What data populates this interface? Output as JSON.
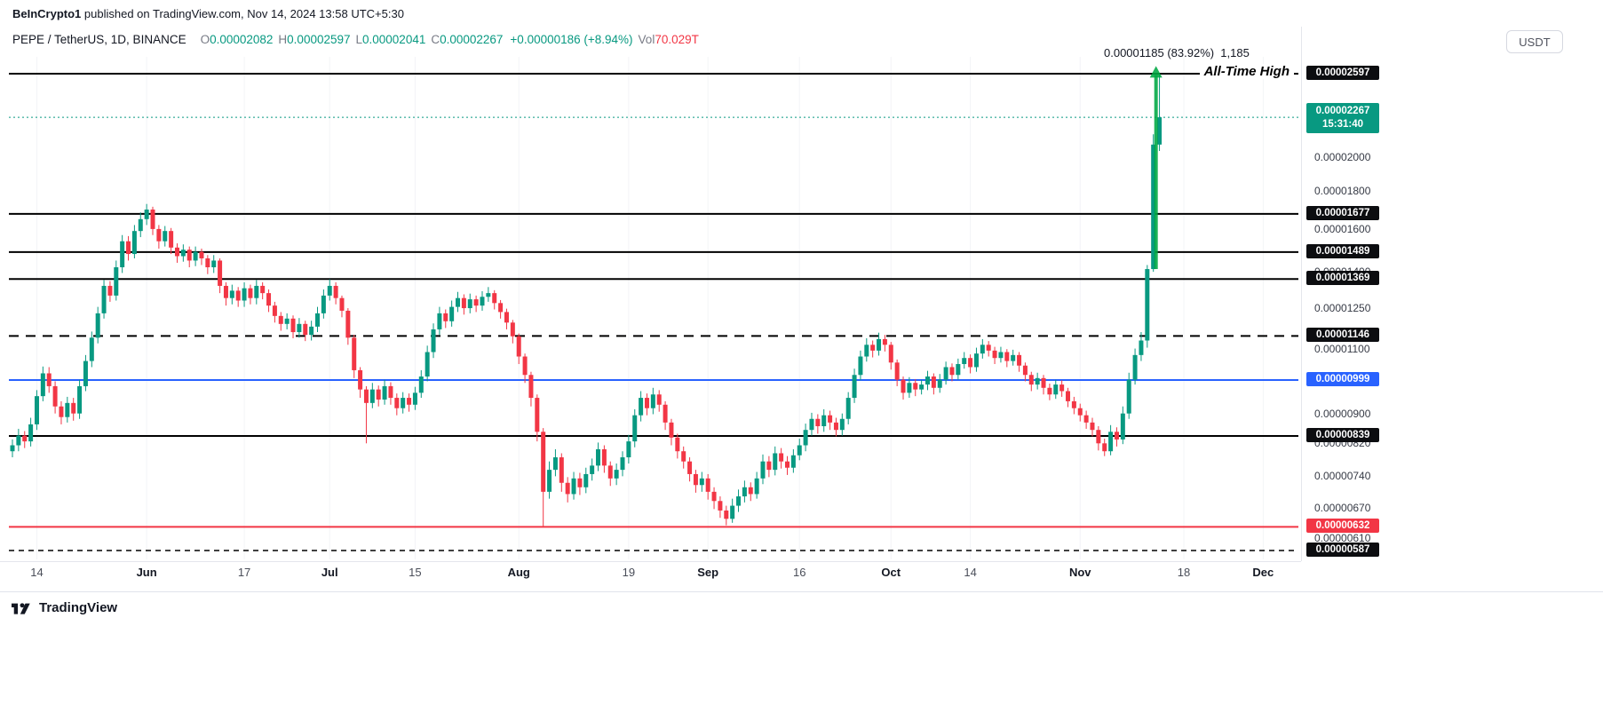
{
  "top_bar": {
    "publisher": "BeInCrypto1",
    "rest": " published on TradingView.com, Nov 14, 2024 13:58 UTC+5:30"
  },
  "header": {
    "symbol": "PEPE / TetherUS, 1D, BINANCE",
    "o_label": "O",
    "o": "0.00002082",
    "h_label": "H",
    "h": "0.00002597",
    "l_label": "L",
    "l": "0.00002041",
    "c_label": "C",
    "c": "0.00002267",
    "change": "+0.00000186 (+8.94%)",
    "vol_label": "Vol",
    "vol": "70.029T",
    "currency": "USDT"
  },
  "annotations": {
    "measure_label": "0.00001185 (83.92%)  1,185",
    "ath_label": "All-Time High"
  },
  "footer": {
    "brand": "TradingView"
  },
  "chart_data": {
    "type": "candlestick",
    "title": "PEPE / TetherUS, 1D, BINANCE",
    "symbol": "PEPE/USDT",
    "timeframe": "1D",
    "exchange": "BINANCE",
    "y_scale": "log",
    "y_range": [
      "0.00000587",
      "0.00002597"
    ],
    "x_range": [
      "2024-05-10",
      "2024-12-02"
    ],
    "price_unit_note": "candle OHLC values are in units of 0.00000001 USDT",
    "start_date": "2024-05-10",
    "colors": {
      "up": "#089981",
      "down": "#f23645"
    },
    "current": {
      "open": "0.00002082",
      "high": "0.00002597",
      "low": "0.00002041",
      "close": "0.00002267",
      "change": "+0.00000186",
      "change_pct": "+8.94%",
      "volume": "70.029T"
    },
    "last_price": {
      "price": 2267,
      "label": "0.00002267",
      "countdown": "15:31:40",
      "color": "#089981"
    },
    "levels": [
      {
        "name": "ath",
        "price": 2597,
        "label": "0.00002597",
        "color": "#000000",
        "badge": "#0c0d10",
        "width": 2
      },
      {
        "name": "r3",
        "price": 1677,
        "label": "0.00001677",
        "color": "#000000",
        "badge": "#0c0d10",
        "width": 2
      },
      {
        "name": "r2",
        "price": 1489,
        "label": "0.00001489",
        "color": "#000000",
        "badge": "#0c0d10",
        "width": 2
      },
      {
        "name": "r1",
        "price": 1369,
        "label": "0.00001369",
        "color": "#000000",
        "badge": "#0c0d10",
        "width": 2
      },
      {
        "name": "mid",
        "price": 1146,
        "label": "0.00001146",
        "color": "#000000",
        "badge": "#0c0d10",
        "width": 2,
        "dash": "11,8"
      },
      {
        "name": "blue",
        "price": 999,
        "label": "0.00000999",
        "color": "#2962ff",
        "badge": "#2962ff",
        "width": 2
      },
      {
        "name": "s1",
        "price": 839,
        "label": "0.00000839",
        "color": "#000000",
        "badge": "#0c0d10",
        "width": 2
      },
      {
        "name": "red",
        "price": 632,
        "label": "0.00000632",
        "color": "#f23645",
        "badge": "#f23645",
        "width": 2
      },
      {
        "name": "s2",
        "price": 587,
        "label": "0.00000587",
        "color": "#000000",
        "badge": "#0c0d10",
        "width": 1.5,
        "dash": "6,5"
      }
    ],
    "y_ticks": [
      {
        "price": 2000,
        "label": "0.00002000"
      },
      {
        "price": 1800,
        "label": "0.00001800"
      },
      {
        "price": 1600,
        "label": "0.00001600"
      },
      {
        "price": 1400,
        "label": "0.00001400"
      },
      {
        "price": 1250,
        "label": "0.00001250"
      },
      {
        "price": 1100,
        "label": "0.00001100"
      },
      {
        "price": 900,
        "label": "0.00000900"
      },
      {
        "price": 820,
        "label": "0.00000820"
      },
      {
        "price": 740,
        "label": "0.00000740"
      },
      {
        "price": 670,
        "label": "0.00000670"
      },
      {
        "price": 610,
        "label": "0.00000610"
      }
    ],
    "x_ticks": [
      {
        "i": 4,
        "label": "14"
      },
      {
        "i": 22,
        "label": "Jun",
        "major": true
      },
      {
        "i": 38,
        "label": "17"
      },
      {
        "i": 52,
        "label": "Jul",
        "major": true
      },
      {
        "i": 66,
        "label": "15"
      },
      {
        "i": 83,
        "label": "Aug",
        "major": true
      },
      {
        "i": 101,
        "label": "19"
      },
      {
        "i": 114,
        "label": "Sep",
        "major": true
      },
      {
        "i": 129,
        "label": "16"
      },
      {
        "i": 144,
        "label": "Oct",
        "major": true
      },
      {
        "i": 157,
        "label": "14"
      },
      {
        "i": 175,
        "label": "Nov",
        "major": true
      },
      {
        "i": 192,
        "label": "18"
      },
      {
        "i": 205,
        "label": "Dec",
        "major": true
      }
    ],
    "arrow": {
      "at_index": 187,
      "from_price": 1412,
      "to_price": 2660,
      "color": "#00a843"
    },
    "candles": [
      [
        800,
        830,
        785,
        815
      ],
      [
        815,
        858,
        800,
        840
      ],
      [
        840,
        852,
        808,
        825
      ],
      [
        825,
        888,
        812,
        870
      ],
      [
        870,
        968,
        855,
        950
      ],
      [
        950,
        1042,
        935,
        1020
      ],
      [
        1020,
        1040,
        960,
        980
      ],
      [
        980,
        995,
        900,
        920
      ],
      [
        920,
        935,
        870,
        890
      ],
      [
        890,
        948,
        875,
        930
      ],
      [
        930,
        945,
        880,
        900
      ],
      [
        900,
        1000,
        885,
        980
      ],
      [
        980,
        1080,
        965,
        1060
      ],
      [
        1060,
        1162,
        1040,
        1140
      ],
      [
        1140,
        1255,
        1120,
        1230
      ],
      [
        1230,
        1365,
        1210,
        1340
      ],
      [
        1340,
        1360,
        1275,
        1300
      ],
      [
        1300,
        1450,
        1280,
        1420
      ],
      [
        1420,
        1570,
        1395,
        1540
      ],
      [
        1540,
        1565,
        1450,
        1480
      ],
      [
        1480,
        1620,
        1460,
        1590
      ],
      [
        1590,
        1685,
        1560,
        1650
      ],
      [
        1650,
        1730,
        1620,
        1700
      ],
      [
        1700,
        1715,
        1570,
        1600
      ],
      [
        1600,
        1620,
        1505,
        1540
      ],
      [
        1540,
        1615,
        1515,
        1590
      ],
      [
        1590,
        1605,
        1480,
        1510
      ],
      [
        1510,
        1530,
        1440,
        1470
      ],
      [
        1470,
        1525,
        1445,
        1500
      ],
      [
        1500,
        1515,
        1420,
        1450
      ],
      [
        1450,
        1515,
        1425,
        1490
      ],
      [
        1490,
        1505,
        1430,
        1460
      ],
      [
        1460,
        1475,
        1390,
        1420
      ],
      [
        1420,
        1475,
        1395,
        1450
      ],
      [
        1450,
        1460,
        1310,
        1340
      ],
      [
        1340,
        1355,
        1260,
        1290
      ],
      [
        1290,
        1345,
        1265,
        1320
      ],
      [
        1320,
        1335,
        1255,
        1280
      ],
      [
        1280,
        1355,
        1255,
        1330
      ],
      [
        1330,
        1345,
        1265,
        1290
      ],
      [
        1290,
        1365,
        1265,
        1340
      ],
      [
        1340,
        1355,
        1285,
        1310
      ],
      [
        1310,
        1325,
        1235,
        1260
      ],
      [
        1260,
        1275,
        1195,
        1220
      ],
      [
        1220,
        1235,
        1165,
        1190
      ],
      [
        1190,
        1230,
        1170,
        1210
      ],
      [
        1210,
        1222,
        1138,
        1160
      ],
      [
        1160,
        1212,
        1140,
        1190
      ],
      [
        1190,
        1202,
        1128,
        1150
      ],
      [
        1150,
        1202,
        1130,
        1180
      ],
      [
        1180,
        1255,
        1160,
        1230
      ],
      [
        1230,
        1325,
        1210,
        1300
      ],
      [
        1300,
        1368,
        1280,
        1340
      ],
      [
        1340,
        1355,
        1265,
        1290
      ],
      [
        1290,
        1300,
        1215,
        1240
      ],
      [
        1240,
        1250,
        1115,
        1140
      ],
      [
        1140,
        1150,
        1005,
        1030
      ],
      [
        1030,
        1040,
        945,
        970
      ],
      [
        970,
        980,
        820,
        930
      ],
      [
        930,
        990,
        915,
        970
      ],
      [
        970,
        982,
        920,
        940
      ],
      [
        940,
        1000,
        925,
        980
      ],
      [
        980,
        992,
        925,
        945
      ],
      [
        945,
        958,
        895,
        915
      ],
      [
        915,
        962,
        900,
        945
      ],
      [
        945,
        958,
        905,
        925
      ],
      [
        925,
        978,
        910,
        960
      ],
      [
        960,
        1030,
        945,
        1010
      ],
      [
        1010,
        1112,
        995,
        1090
      ],
      [
        1090,
        1192,
        1070,
        1170
      ],
      [
        1170,
        1255,
        1150,
        1230
      ],
      [
        1230,
        1245,
        1175,
        1200
      ],
      [
        1200,
        1280,
        1180,
        1255
      ],
      [
        1255,
        1315,
        1235,
        1290
      ],
      [
        1290,
        1305,
        1225,
        1250
      ],
      [
        1250,
        1308,
        1230,
        1285
      ],
      [
        1285,
        1300,
        1235,
        1260
      ],
      [
        1260,
        1318,
        1240,
        1295
      ],
      [
        1295,
        1335,
        1275,
        1310
      ],
      [
        1310,
        1322,
        1245,
        1270
      ],
      [
        1270,
        1282,
        1210,
        1235
      ],
      [
        1235,
        1248,
        1170,
        1195
      ],
      [
        1195,
        1205,
        1120,
        1145
      ],
      [
        1145,
        1155,
        1050,
        1075
      ],
      [
        1075,
        1085,
        990,
        1015
      ],
      [
        1015,
        1025,
        920,
        945
      ],
      [
        945,
        955,
        825,
        850
      ],
      [
        850,
        860,
        632,
        705
      ],
      [
        705,
        775,
        690,
        755
      ],
      [
        755,
        805,
        740,
        785
      ],
      [
        785,
        795,
        705,
        725
      ],
      [
        725,
        738,
        682,
        700
      ],
      [
        700,
        750,
        688,
        735
      ],
      [
        735,
        748,
        698,
        715
      ],
      [
        715,
        760,
        702,
        745
      ],
      [
        745,
        782,
        730,
        765
      ],
      [
        765,
        822,
        752,
        805
      ],
      [
        805,
        815,
        748,
        765
      ],
      [
        765,
        775,
        718,
        735
      ],
      [
        735,
        770,
        720,
        755
      ],
      [
        755,
        800,
        740,
        785
      ],
      [
        785,
        842,
        770,
        825
      ],
      [
        825,
        912,
        810,
        895
      ],
      [
        895,
        965,
        878,
        945
      ],
      [
        945,
        958,
        895,
        915
      ],
      [
        915,
        975,
        898,
        955
      ],
      [
        955,
        968,
        905,
        925
      ],
      [
        925,
        935,
        855,
        875
      ],
      [
        875,
        885,
        815,
        835
      ],
      [
        835,
        845,
        782,
        800
      ],
      [
        800,
        812,
        758,
        775
      ],
      [
        775,
        785,
        728,
        745
      ],
      [
        745,
        755,
        703,
        720
      ],
      [
        720,
        750,
        705,
        735
      ],
      [
        735,
        745,
        688,
        705
      ],
      [
        705,
        715,
        668,
        685
      ],
      [
        685,
        695,
        650,
        665
      ],
      [
        665,
        675,
        635,
        648
      ],
      [
        648,
        690,
        640,
        675
      ],
      [
        675,
        710,
        662,
        695
      ],
      [
        695,
        730,
        682,
        715
      ],
      [
        715,
        726,
        685,
        700
      ],
      [
        700,
        750,
        690,
        735
      ],
      [
        735,
        792,
        722,
        775
      ],
      [
        775,
        788,
        738,
        755
      ],
      [
        755,
        812,
        742,
        795
      ],
      [
        795,
        808,
        758,
        775
      ],
      [
        775,
        788,
        743,
        760
      ],
      [
        760,
        805,
        748,
        790
      ],
      [
        790,
        832,
        778,
        815
      ],
      [
        815,
        872,
        800,
        855
      ],
      [
        855,
        902,
        840,
        885
      ],
      [
        885,
        898,
        845,
        865
      ],
      [
        865,
        912,
        850,
        895
      ],
      [
        895,
        908,
        855,
        875
      ],
      [
        875,
        888,
        838,
        855
      ],
      [
        855,
        900,
        840,
        885
      ],
      [
        885,
        962,
        870,
        945
      ],
      [
        945,
        1035,
        930,
        1015
      ],
      [
        1015,
        1095,
        998,
        1075
      ],
      [
        1075,
        1138,
        1058,
        1115
      ],
      [
        1115,
        1130,
        1072,
        1095
      ],
      [
        1095,
        1158,
        1078,
        1135
      ],
      [
        1135,
        1150,
        1092,
        1115
      ],
      [
        1115,
        1125,
        1032,
        1055
      ],
      [
        1055,
        1065,
        980,
        1000
      ],
      [
        1000,
        1010,
        940,
        960
      ],
      [
        960,
        1008,
        945,
        990
      ],
      [
        990,
        1002,
        950,
        970
      ],
      [
        970,
        1000,
        955,
        985
      ],
      [
        985,
        1028,
        968,
        1010
      ],
      [
        1010,
        1020,
        955,
        975
      ],
      [
        975,
        1018,
        960,
        1000
      ],
      [
        1000,
        1058,
        985,
        1040
      ],
      [
        1040,
        1052,
        995,
        1015
      ],
      [
        1015,
        1068,
        1000,
        1050
      ],
      [
        1050,
        1090,
        1035,
        1070
      ],
      [
        1070,
        1082,
        1020,
        1040
      ],
      [
        1040,
        1105,
        1025,
        1085
      ],
      [
        1085,
        1135,
        1068,
        1115
      ],
      [
        1115,
        1128,
        1075,
        1095
      ],
      [
        1095,
        1108,
        1050,
        1070
      ],
      [
        1070,
        1108,
        1055,
        1090
      ],
      [
        1090,
        1100,
        1040,
        1060
      ],
      [
        1060,
        1098,
        1045,
        1080
      ],
      [
        1080,
        1090,
        1025,
        1045
      ],
      [
        1045,
        1055,
        995,
        1015
      ],
      [
        1015,
        1025,
        965,
        985
      ],
      [
        985,
        1022,
        970,
        1005
      ],
      [
        1005,
        1015,
        955,
        975
      ],
      [
        975,
        988,
        938,
        955
      ],
      [
        955,
        1000,
        942,
        985
      ],
      [
        985,
        998,
        948,
        965
      ],
      [
        965,
        975,
        918,
        935
      ],
      [
        935,
        948,
        898,
        915
      ],
      [
        915,
        928,
        878,
        895
      ],
      [
        895,
        908,
        858,
        875
      ],
      [
        875,
        888,
        838,
        855
      ],
      [
        855,
        865,
        802,
        820
      ],
      [
        820,
        832,
        788,
        800
      ],
      [
        800,
        868,
        790,
        850
      ],
      [
        850,
        862,
        812,
        830
      ],
      [
        830,
        920,
        818,
        900
      ],
      [
        900,
        1022,
        885,
        1000
      ],
      [
        1000,
        1102,
        985,
        1080
      ],
      [
        1080,
        1160,
        1060,
        1130
      ],
      [
        1130,
        1430,
        1105,
        1412
      ],
      [
        1412,
        2150,
        1400,
        2082
      ],
      [
        2082,
        2597,
        2041,
        2267
      ]
    ]
  }
}
